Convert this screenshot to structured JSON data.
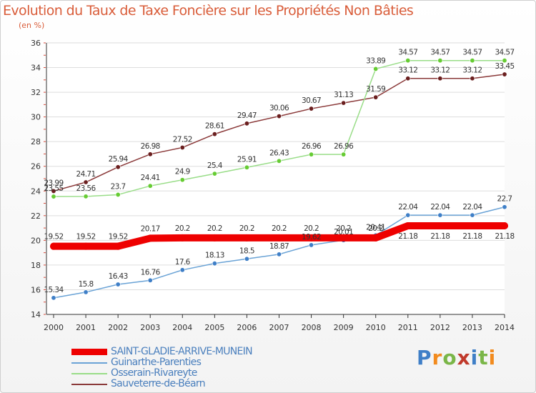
{
  "header": {
    "title": "Evolution du Taux de Taxe Foncière sur les Propriétés Non Bâties",
    "unit": "(en %)"
  },
  "logo": {
    "text": "Proxiti",
    "colors": [
      "#3f7fc7",
      "#f28b1e",
      "#7ab648",
      "#c0392b",
      "#3f7fc7",
      "#7ab648",
      "#f28b1e"
    ]
  },
  "colors": {
    "title": "#d95d3a",
    "axis": "#333333",
    "grid": "#dddddd",
    "legend_text": "#4a7fbd",
    "tick_marks": "#d94a3a"
  },
  "chart_data": {
    "type": "line",
    "title": "Evolution du Taux de Taxe Foncière sur les Propriétés Non Bâties",
    "ylabel": "(en %)",
    "xlabel": "",
    "x": [
      "2000",
      "2001",
      "2002",
      "2003",
      "2004",
      "2005",
      "2006",
      "2007",
      "2008",
      "2009",
      "2010",
      "2011",
      "2012",
      "2013",
      "2014"
    ],
    "ylim": [
      14,
      36
    ],
    "yticks": [
      14,
      16,
      18,
      20,
      22,
      24,
      26,
      28,
      30,
      32,
      34,
      36
    ],
    "grid": true,
    "legend_position": "bottom-left",
    "series": [
      {
        "name": "SAINT-GLADIE-ARRIVE-MUNEIN",
        "color": "#ee0000",
        "values": [
          19.52,
          19.52,
          19.52,
          20.17,
          20.2,
          20.2,
          20.2,
          20.2,
          20.2,
          20.2,
          20.2,
          21.18,
          21.18,
          21.18,
          21.18
        ],
        "labels": [
          "19.52",
          "19.52",
          "19.52",
          "20.17",
          "20.2",
          "20.2",
          "20.2",
          "20.2",
          "20.2",
          "20.2",
          "20.2",
          "",
          "",
          "",
          ""
        ]
      },
      {
        "name": "Guinarthe-Parenties",
        "color": "#6aa3d6",
        "marker": "#3f7fc7",
        "values": [
          15.34,
          15.8,
          16.43,
          16.76,
          17.6,
          18.13,
          18.5,
          18.87,
          19.62,
          20.01,
          20.41,
          22.04,
          22.04,
          22.04,
          22.7
        ],
        "labels": [
          "15.34",
          "15.8",
          "16.43",
          "16.76",
          "17.6",
          "18.13",
          "18.5",
          "18.87",
          "19.62",
          "20.01",
          "20.41",
          "22.04",
          "22.04",
          "22.04",
          "22.7"
        ]
      },
      {
        "name": "Osserain-Rivareyte",
        "color": "#99dd88",
        "marker": "#66cc33",
        "values": [
          23.55,
          23.56,
          23.7,
          24.41,
          24.9,
          25.4,
          25.91,
          26.43,
          26.96,
          26.96,
          33.89,
          34.57,
          34.57,
          34.57,
          34.57
        ],
        "labels": [
          "23.55",
          "23.56",
          "23.7",
          "24.41",
          "24.9",
          "25.4",
          "25.91",
          "26.43",
          "26.96",
          "26.96",
          "33.89",
          "34.57",
          "34.57",
          "34.57",
          "34.57"
        ]
      },
      {
        "name": "Sauveterre-de-Béarn",
        "color": "#8b3a3a",
        "marker": "#6b1f1f",
        "values": [
          23.99,
          24.71,
          25.94,
          26.98,
          27.52,
          28.61,
          29.47,
          30.06,
          30.67,
          31.13,
          31.59,
          33.12,
          33.12,
          33.12,
          33.45
        ],
        "labels": [
          "23.99",
          "24.71",
          "25.94",
          "26.98",
          "27.52",
          "28.61",
          "29.47",
          "30.06",
          "30.67",
          "31.13",
          "31.59",
          "33.12",
          "33.12",
          "33.12",
          "33.45"
        ]
      }
    ],
    "extra_labels": [
      {
        "x": "2011",
        "text": "21.18",
        "near_value": 21.18
      },
      {
        "x": "2012",
        "text": "21.18",
        "near_value": 21.18
      },
      {
        "x": "2013",
        "text": "21.18",
        "near_value": 21.18
      },
      {
        "x": "2014",
        "text": "21.18",
        "near_value": 21.18
      }
    ]
  }
}
